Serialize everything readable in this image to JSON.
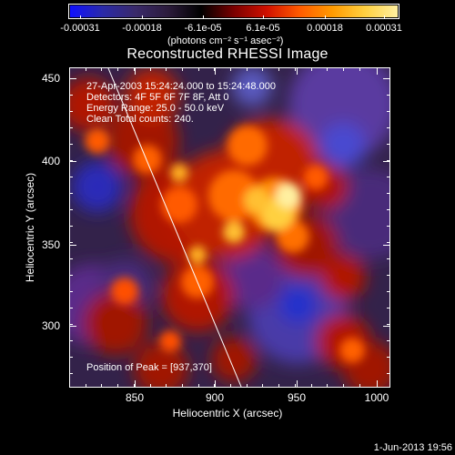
{
  "colorbar": {
    "tick_labels": [
      "-0.00031",
      "-0.00018",
      "-6.1e-05",
      "6.1e-05",
      "0.00018",
      "0.00031"
    ],
    "units": "(photons cm⁻² s⁻¹ asec⁻²)",
    "colors": [
      "#1010ff",
      "#2a2aa8",
      "#3a2a6a",
      "#2b1b3b",
      "#000000",
      "#7a0000",
      "#d01000",
      "#ff5a00",
      "#ff9a00",
      "#ffd040",
      "#fff0a0"
    ]
  },
  "title": "Reconstructed RHESSI Image",
  "annotations": [
    "27-Apr-2003 15:24:24.000 to 15:24:48.000",
    "Detectors: 4F 5F 6F 7F 8F, Att 0",
    "Energy Range: 25.0 - 50.0 keV",
    "Clean    Total counts: 240."
  ],
  "peak_label": "Position of Peak = [937,370]",
  "x_axis": {
    "label": "Heliocentric X (arcsec)",
    "ticks": [
      "850",
      "900",
      "950",
      "1000"
    ],
    "range": [
      812,
      1002
    ]
  },
  "y_axis": {
    "label": "Heliocentric Y (arcsec)",
    "ticks": [
      "300",
      "350",
      "400",
      "450"
    ],
    "range": [
      262,
      458
    ]
  },
  "footer_date": "1-Jun-2013 19:56"
}
